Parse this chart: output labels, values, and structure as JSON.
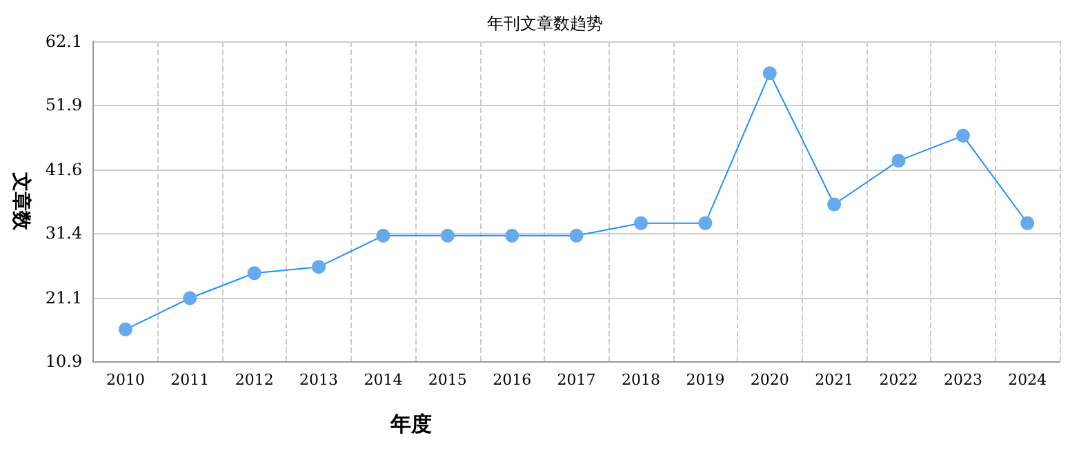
{
  "chart_data": {
    "type": "line",
    "title": "年刊文章数趋势",
    "xlabel": "年度",
    "ylabel": "文章数",
    "categories": [
      "2010",
      "2011",
      "2012",
      "2013",
      "2014",
      "2015",
      "2016",
      "2017",
      "2018",
      "2019",
      "2020",
      "2021",
      "2022",
      "2023",
      "2024"
    ],
    "series": [
      {
        "color": "#1e90ff",
        "values": [
          16,
          21,
          25,
          26,
          31,
          31,
          31,
          31,
          33,
          33,
          57,
          36,
          43,
          47,
          33
        ]
      }
    ],
    "ylim": [
      10.9,
      62.1
    ],
    "yticks": [
      10.9,
      21.1,
      31.4,
      41.6,
      51.9,
      62.1
    ],
    "grid": true,
    "marker": "circle",
    "line_style": "solid"
  }
}
